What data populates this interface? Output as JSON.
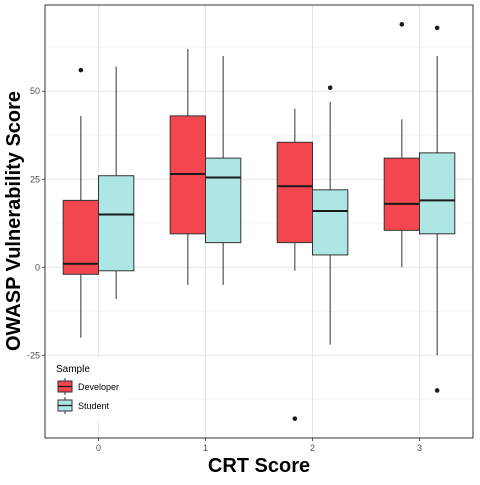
{
  "chart_data": {
    "type": "boxplot",
    "xlabel": "CRT Score",
    "ylabel": "OWASP Vulnerability Score",
    "categories": [
      "0",
      "1",
      "2",
      "3"
    ],
    "ylim": [
      -48.5,
      74.5
    ],
    "yticks": [
      -25,
      0,
      25,
      50
    ],
    "grid": true,
    "legend": {
      "title": "Sample",
      "position": "bottom-left inside"
    },
    "series": [
      {
        "name": "Developer",
        "color": "#f4464e",
        "boxes": [
          {
            "category": "0",
            "min": -20,
            "q1": -2,
            "median": 1,
            "q3": 19,
            "max": 43,
            "outliers": [
              56
            ]
          },
          {
            "category": "1",
            "min": -5,
            "q1": 9.5,
            "median": 26.5,
            "q3": 43,
            "max": 62,
            "outliers": []
          },
          {
            "category": "2",
            "min": -1,
            "q1": 7,
            "median": 23,
            "q3": 35.5,
            "max": 45,
            "outliers": [
              -43
            ]
          },
          {
            "category": "3",
            "min": 0,
            "q1": 10.5,
            "median": 18,
            "q3": 31,
            "max": 42,
            "outliers": [
              69
            ]
          }
        ]
      },
      {
        "name": "Student",
        "color": "#aee5e5",
        "boxes": [
          {
            "category": "0",
            "min": -9,
            "q1": -1,
            "median": 15,
            "q3": 26,
            "max": 57,
            "outliers": []
          },
          {
            "category": "1",
            "min": -5,
            "q1": 7,
            "median": 25.5,
            "q3": 31,
            "max": 60,
            "outliers": []
          },
          {
            "category": "2",
            "min": -22,
            "q1": 3.5,
            "median": 16,
            "q3": 22,
            "max": 47,
            "outliers": [
              51
            ]
          },
          {
            "category": "3",
            "min": -25,
            "q1": 9.5,
            "median": 19,
            "q3": 32.5,
            "max": 60,
            "outliers": [
              68,
              -35
            ]
          }
        ]
      }
    ]
  }
}
